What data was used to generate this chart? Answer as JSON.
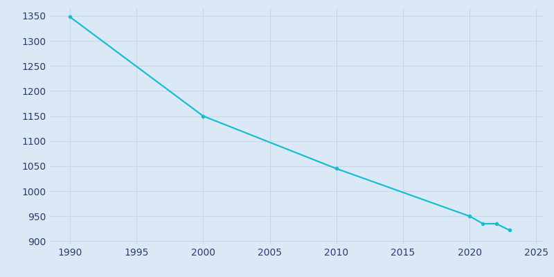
{
  "years": [
    1990,
    2000,
    2010,
    2020,
    2021,
    2022,
    2023
  ],
  "population": [
    1348,
    1150,
    1045,
    950,
    935,
    935,
    922
  ],
  "line_color": "#17becf",
  "marker": "o",
  "marker_size": 3,
  "line_width": 1.6,
  "plot_background_color": "#dbe8f5",
  "figure_background": "#dbe8f5",
  "xlim": [
    1988.5,
    2025.5
  ],
  "ylim": [
    895,
    1365
  ],
  "xticks": [
    1990,
    1995,
    2000,
    2005,
    2010,
    2015,
    2020,
    2025
  ],
  "yticks": [
    900,
    950,
    1000,
    1050,
    1100,
    1150,
    1200,
    1250,
    1300,
    1350
  ],
  "tick_label_color": "#2e3a6b",
  "tick_label_fontsize": 10,
  "grid_color": "#c8d8ea",
  "grid_linewidth": 0.8
}
